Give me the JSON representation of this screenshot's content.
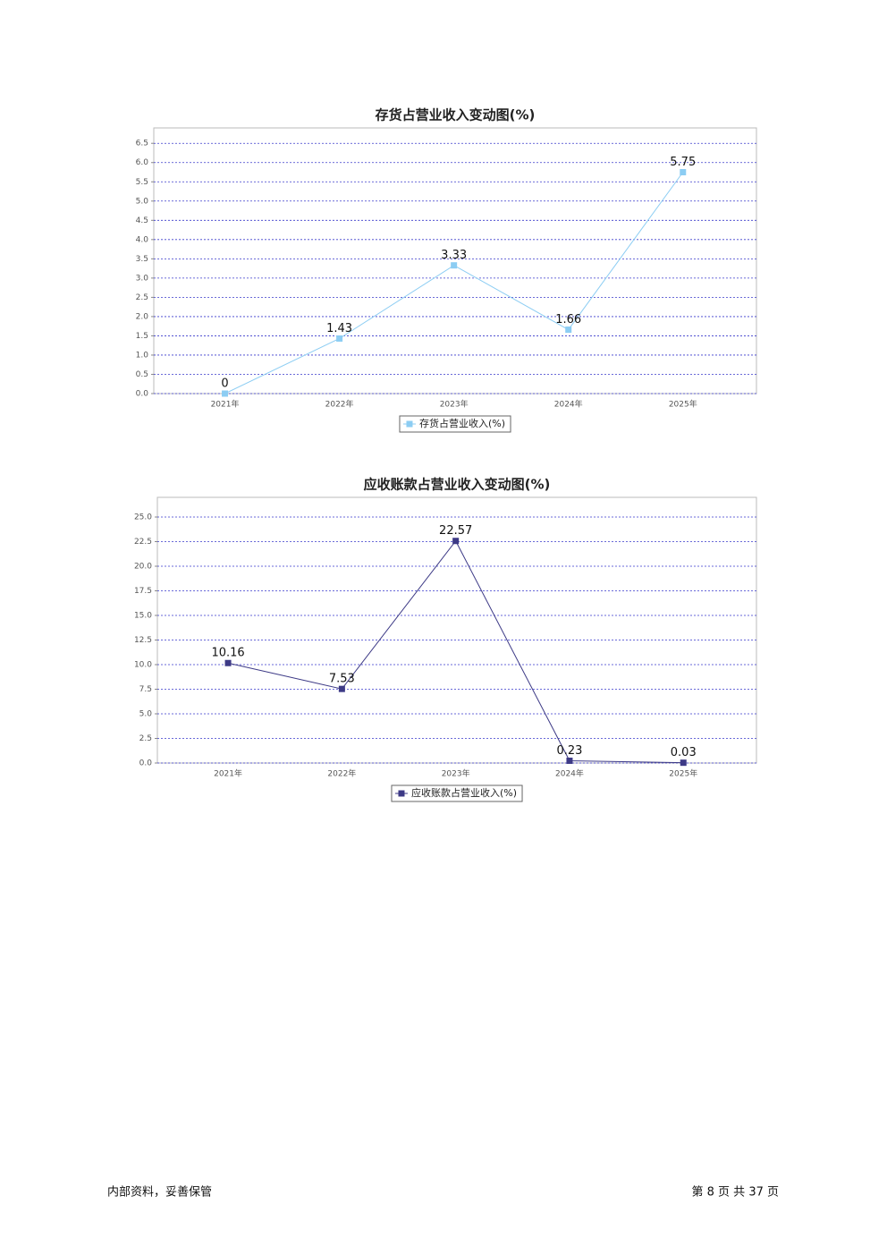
{
  "chart_data": [
    {
      "type": "line",
      "title": "存货占营业收入变动图(%)",
      "categories": [
        "2021年",
        "2022年",
        "2023年",
        "2024年",
        "2025年"
      ],
      "series": [
        {
          "name": "存货占营业收入(%)",
          "color": "#8ccdf3",
          "values": [
            0,
            1.43,
            3.33,
            1.66,
            5.75
          ]
        }
      ],
      "ylim": [
        0,
        6.9
      ],
      "yticks": [
        {
          "value": 0,
          "label": "0.0"
        },
        0.5,
        {
          "value": 1,
          "label": "1.0"
        },
        1.5,
        {
          "value": 2,
          "label": "2.0"
        },
        2.5,
        {
          "value": 3,
          "label": "3.0"
        },
        3.5,
        {
          "value": 4,
          "label": "4.0"
        },
        4.5,
        {
          "value": 5,
          "label": "5.0"
        },
        5.5,
        {
          "value": 6,
          "label": "6.0"
        },
        6.5
      ],
      "grid": true
    },
    {
      "type": "line",
      "title": "应收账款占营业收入变动图(%)",
      "categories": [
        "2021年",
        "2022年",
        "2023年",
        "2024年",
        "2025年"
      ],
      "series": [
        {
          "name": "应收账款占营业收入(%)",
          "color": "#3d3a86",
          "values": [
            10.16,
            7.53,
            22.57,
            0.23,
            0.03
          ]
        }
      ],
      "ylim": [
        0,
        27
      ],
      "yticks": [
        {
          "value": 0,
          "label": "0.0"
        },
        2.5,
        {
          "value": 5,
          "label": "5.0"
        },
        7.5,
        {
          "value": 10,
          "label": "10.0"
        },
        12.5,
        {
          "value": 15,
          "label": "15.0"
        },
        17.5,
        {
          "value": 20,
          "label": "20.0"
        },
        22.5,
        {
          "value": 25,
          "label": "25.0"
        }
      ],
      "grid": true
    }
  ],
  "footer": {
    "left": "内部资料，妥善保管",
    "right": "第 8 页  共 37 页"
  }
}
